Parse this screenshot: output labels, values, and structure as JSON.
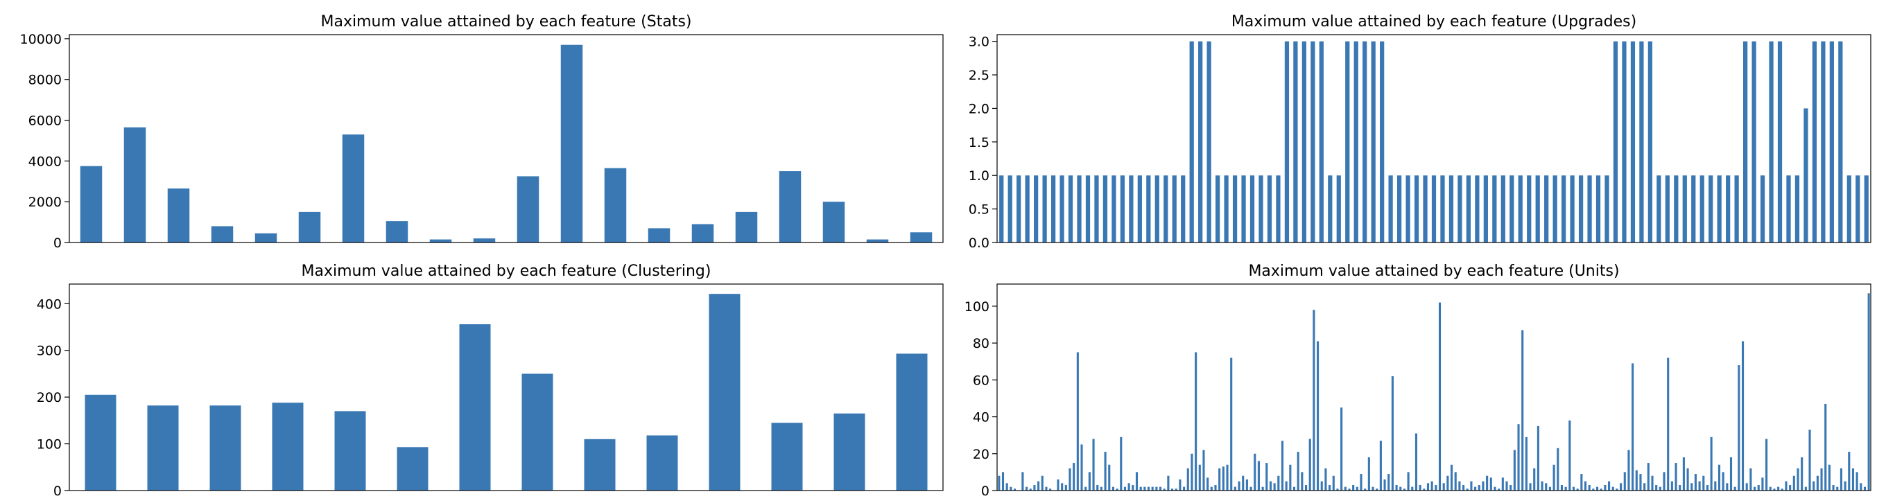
{
  "bar_color": "#3a78b4",
  "chart_data": [
    {
      "type": "bar",
      "title": "Maximum value attained by each feature (Stats)",
      "xlabel": "",
      "ylabel": "",
      "ylim": [
        0,
        10200
      ],
      "yticks": [
        0,
        2000,
        4000,
        6000,
        8000,
        10000
      ],
      "ytick_labels": [
        "0",
        "2000",
        "4000",
        "6000",
        "8000",
        "10000"
      ],
      "values": [
        3750,
        5650,
        2650,
        800,
        450,
        1500,
        5300,
        1050,
        150,
        200,
        3250,
        9700,
        3650,
        700,
        900,
        1500,
        3500,
        2000,
        150,
        500
      ]
    },
    {
      "type": "bar",
      "title": "Maximum value attained by each feature (Upgrades)",
      "xlabel": "",
      "ylabel": "",
      "ylim": [
        0,
        3.1
      ],
      "yticks": [
        0,
        0.5,
        1,
        1.5,
        2,
        2.5,
        3
      ],
      "ytick_labels": [
        "0.0",
        "0.5",
        "1.0",
        "1.5",
        "2.0",
        "2.5",
        "3.0"
      ],
      "values": [
        1,
        1,
        1,
        1,
        1,
        1,
        1,
        1,
        1,
        1,
        1,
        1,
        1,
        1,
        1,
        1,
        1,
        1,
        1,
        1,
        1,
        1,
        3,
        3,
        3,
        1,
        1,
        1,
        1,
        1,
        1,
        1,
        1,
        3,
        3,
        3,
        3,
        3,
        1,
        1,
        3,
        3,
        3,
        3,
        3,
        1,
        1,
        1,
        1,
        1,
        1,
        1,
        1,
        1,
        1,
        1,
        1,
        1,
        1,
        1,
        1,
        1,
        1,
        1,
        1,
        1,
        1,
        1,
        1,
        1,
        1,
        3,
        3,
        3,
        3,
        3,
        1,
        1,
        1,
        1,
        1,
        1,
        1,
        1,
        1,
        1,
        3,
        3,
        1,
        3,
        3,
        1,
        1,
        2,
        3,
        3,
        3,
        3,
        1,
        1,
        1
      ]
    },
    {
      "type": "bar",
      "title": "Maximum value attained by each feature (Clustering)",
      "xlabel": "",
      "ylabel": "",
      "ylim": [
        0,
        442
      ],
      "yticks": [
        0,
        100,
        200,
        300,
        400
      ],
      "ytick_labels": [
        "0",
        "100",
        "200",
        "300",
        "400"
      ],
      "values": [
        205,
        182,
        182,
        188,
        170,
        93,
        356,
        250,
        110,
        118,
        421,
        145,
        165,
        293
      ]
    },
    {
      "type": "bar",
      "title": "Maximum value attained by each feature (Units)",
      "xlabel": "",
      "ylabel": "",
      "ylim": [
        0,
        112
      ],
      "yticks": [
        0,
        20,
        40,
        60,
        80,
        100
      ],
      "ytick_labels": [
        "0",
        "20",
        "40",
        "60",
        "80",
        "100"
      ],
      "values": [
        8,
        10,
        4,
        2,
        1,
        0,
        10,
        2,
        1,
        3,
        5,
        8,
        2,
        1,
        0,
        6,
        4,
        3,
        12,
        15,
        75,
        25,
        2,
        10,
        28,
        3,
        2,
        21,
        14,
        2,
        1,
        29,
        2,
        4,
        3,
        10,
        2,
        2,
        2,
        2,
        2,
        2,
        1,
        8,
        1,
        1,
        6,
        2,
        12,
        20,
        75,
        14,
        22,
        7,
        2,
        3,
        12,
        13,
        14,
        72,
        2,
        5,
        8,
        6,
        2,
        20,
        16,
        2,
        15,
        5,
        4,
        8,
        27,
        5,
        14,
        2,
        21,
        10,
        3,
        28,
        98,
        81,
        5,
        12,
        3,
        8,
        1,
        45,
        2,
        1,
        3,
        2,
        9,
        1,
        18,
        2,
        1,
        27,
        6,
        9,
        62,
        3,
        2,
        1,
        10,
        2,
        31,
        3,
        1,
        4,
        5,
        3,
        102,
        4,
        8,
        14,
        10,
        5,
        3,
        1,
        5,
        2,
        3,
        5,
        8,
        7,
        2,
        1,
        7,
        5,
        3,
        22,
        36,
        87,
        29,
        4,
        12,
        35,
        5,
        4,
        2,
        14,
        23,
        3,
        2,
        38,
        2,
        1,
        9,
        5,
        3,
        1,
        2,
        1,
        3,
        5,
        2,
        1,
        4,
        10,
        22,
        69,
        11,
        9,
        4,
        15,
        8,
        3,
        2,
        10,
        72,
        5,
        15,
        3,
        18,
        12,
        4,
        9,
        5,
        8,
        3,
        29,
        5,
        14,
        10,
        4,
        18,
        2,
        68,
        81,
        4,
        12,
        2,
        3,
        7,
        28,
        2,
        1,
        2,
        1,
        5,
        3,
        8,
        12,
        18,
        2,
        33,
        5,
        8,
        12,
        47,
        14,
        3,
        2,
        12,
        5,
        21,
        12,
        10,
        4,
        2,
        107
      ]
    }
  ]
}
